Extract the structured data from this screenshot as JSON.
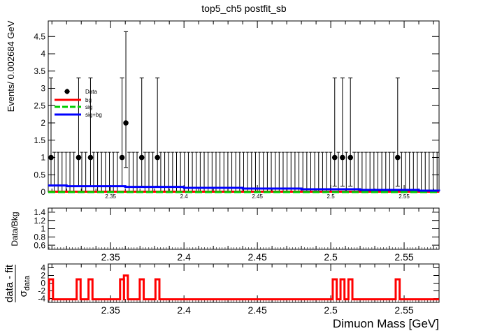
{
  "title": "top5_ch5   postfit_sb",
  "colors": {
    "bg": "#ff0000",
    "sig": "#00cc00",
    "sigbg": "#0000ff",
    "data": "#000000",
    "resid": "#ff0000"
  },
  "chart_data": [
    {
      "type": "scatter",
      "panel": "main",
      "ylabel": "Events/ 0.002684 GeV",
      "xlim": [
        2.3075,
        2.5738
      ],
      "ylim": [
        0,
        4.95
      ],
      "yticks": [
        "0",
        "0.5",
        "1",
        "1.5",
        "2",
        "2.5",
        "3",
        "3.5",
        "4",
        "4.5"
      ],
      "xticks": [
        "2.35",
        "2.4",
        "2.45",
        "2.5",
        "2.55"
      ],
      "legend": {
        "position": "top-left",
        "entries": [
          "Data",
          "bg",
          "sig",
          "sig+bg"
        ]
      },
      "data_points": [
        {
          "x": 2.3094,
          "y": 1,
          "lo": 0.83,
          "hi": 2.3
        },
        {
          "x": 2.3282,
          "y": 1,
          "lo": 0.83,
          "hi": 2.3
        },
        {
          "x": 2.3363,
          "y": 1,
          "lo": 0.83,
          "hi": 2.3
        },
        {
          "x": 2.3578,
          "y": 1,
          "lo": 0.83,
          "hi": 2.3
        },
        {
          "x": 2.3604,
          "y": 2,
          "lo": 1.29,
          "hi": 2.64
        },
        {
          "x": 2.3712,
          "y": 1,
          "lo": 0.83,
          "hi": 2.3
        },
        {
          "x": 2.3819,
          "y": 1,
          "lo": 0.83,
          "hi": 2.3
        },
        {
          "x": 2.5027,
          "y": 1,
          "lo": 0.83,
          "hi": 2.3
        },
        {
          "x": 2.508,
          "y": 1,
          "lo": 0.83,
          "hi": 2.3
        },
        {
          "x": 2.5134,
          "y": 1,
          "lo": 0.83,
          "hi": 2.3
        },
        {
          "x": 2.5456,
          "y": 1,
          "lo": 0.83,
          "hi": 2.3
        }
      ],
      "zero_bin_error_hi": 1.15,
      "series": [
        {
          "name": "bg",
          "x": [
            2.3075,
            2.5738
          ],
          "values": [
            0.01,
            0.01
          ]
        },
        {
          "name": "sig",
          "x": [
            2.3075,
            2.5738
          ],
          "values": [
            0.0,
            0.0
          ]
        },
        {
          "name": "sig+bg",
          "x": [
            2.3075,
            2.32,
            2.36,
            2.4,
            2.44,
            2.48,
            2.52,
            2.56,
            2.5738
          ],
          "values": [
            0.19,
            0.17,
            0.15,
            0.12,
            0.1,
            0.08,
            0.06,
            0.04,
            0.03
          ]
        }
      ]
    },
    {
      "type": "scatter",
      "panel": "ratio",
      "ylabel": "Data/Bkg",
      "xlim": [
        2.3075,
        2.5738
      ],
      "ylim": [
        0.5,
        1.5
      ],
      "yticks": [
        "0.6",
        "0.8",
        "1",
        "1.2",
        "1.4"
      ],
      "xticks": [
        "2.35",
        "2.4",
        "2.45",
        "2.5",
        "2.55"
      ],
      "values": []
    },
    {
      "type": "line",
      "panel": "pull",
      "ylabel_main": "data - fit",
      "ylabel_sigma": "σ",
      "ylabel_sub": "data",
      "xlabel": "Dimuon Mass [GeV]",
      "xlim": [
        2.3075,
        2.5738
      ],
      "ylim": [
        -5,
        5
      ],
      "yticks": [
        "-4",
        "-2",
        "0",
        "2",
        "4"
      ],
      "xticks": [
        "2.35",
        "2.4",
        "2.45",
        "2.5",
        "2.55"
      ],
      "baseline": -4.2,
      "pulls": [
        {
          "x": 2.3094,
          "y": 1
        },
        {
          "x": 2.3282,
          "y": 1
        },
        {
          "x": 2.3363,
          "y": 1
        },
        {
          "x": 2.3578,
          "y": 1
        },
        {
          "x": 2.3604,
          "y": 2
        },
        {
          "x": 2.3712,
          "y": 1
        },
        {
          "x": 2.3819,
          "y": 1
        },
        {
          "x": 2.5027,
          "y": 1
        },
        {
          "x": 2.508,
          "y": 1
        },
        {
          "x": 2.5134,
          "y": 1
        },
        {
          "x": 2.5456,
          "y": 1
        }
      ]
    }
  ]
}
